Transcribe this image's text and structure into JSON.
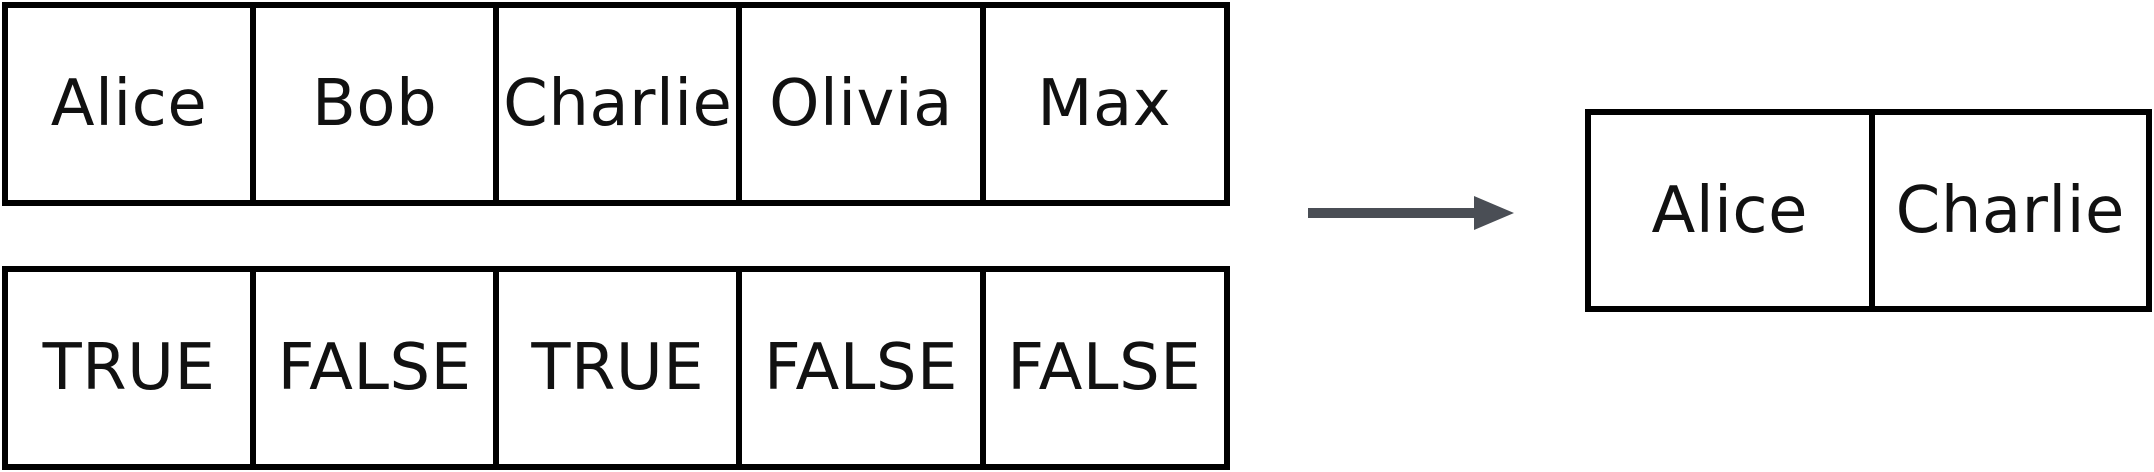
{
  "input": {
    "names": [
      "Alice",
      "Bob",
      "Charlie",
      "Olivia",
      "Max"
    ],
    "flags": [
      "TRUE",
      "FALSE",
      "TRUE",
      "FALSE",
      "FALSE"
    ]
  },
  "output": {
    "names": [
      "Alice",
      "Charlie"
    ]
  },
  "colors": {
    "border": "#000000",
    "arrow": "#4a4e55",
    "text": "#111111"
  },
  "icons": {
    "arrow": "arrow-right-icon"
  }
}
